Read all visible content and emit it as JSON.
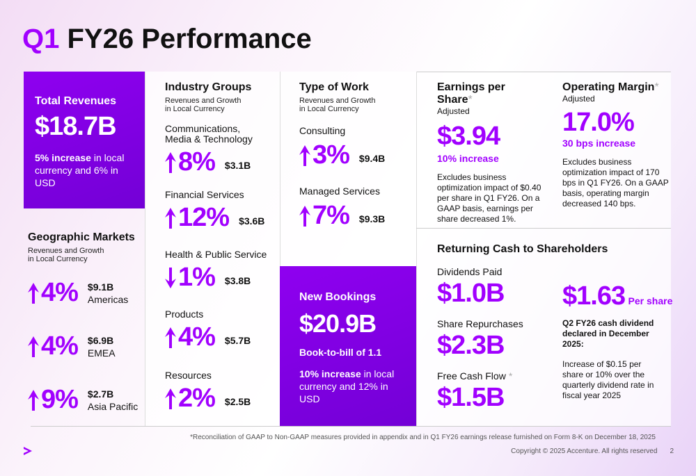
{
  "header": {
    "title_prefix": "Q1",
    "title": "FY26 Performance"
  },
  "total_revenues": {
    "title": "Total Revenues",
    "value": "$18.7B",
    "highlight": "5% increase",
    "text": "in local currency and 6% in USD"
  },
  "geographic_markets": {
    "title": "Geographic Markets",
    "subtitle": "Revenues and Growth in Local Currency",
    "items": [
      {
        "direction": "up",
        "growth": "4%",
        "amount": "$9.1B",
        "name": "Americas"
      },
      {
        "direction": "up",
        "growth": "4%",
        "amount": "$6.9B",
        "name": "EMEA"
      },
      {
        "direction": "up",
        "growth": "9%",
        "amount": "$2.7B",
        "name": "Asia Pacific"
      }
    ]
  },
  "industry_groups": {
    "title": "Industry Groups",
    "subtitle": "Revenues and Growth in Local Currency",
    "items": [
      {
        "name": "Communications, Media & Technology",
        "direction": "up",
        "growth": "8%",
        "amount": "$3.1B"
      },
      {
        "name": "Financial Services",
        "direction": "up",
        "growth": "12%",
        "amount": "$3.6B"
      },
      {
        "name": "Health & Public Service",
        "direction": "down",
        "growth": "1%",
        "amount": "$3.8B"
      },
      {
        "name": "Products",
        "direction": "up",
        "growth": "4%",
        "amount": "$5.7B"
      },
      {
        "name": "Resources",
        "direction": "up",
        "growth": "2%",
        "amount": "$2.5B"
      }
    ]
  },
  "type_of_work": {
    "title": "Type of Work",
    "subtitle": "Revenues and Growth in Local Currency",
    "items": [
      {
        "name": "Consulting",
        "direction": "up",
        "growth": "3%",
        "amount": "$9.4B"
      },
      {
        "name": "Managed Services",
        "direction": "up",
        "growth": "7%",
        "amount": "$9.3B"
      }
    ]
  },
  "new_bookings": {
    "title": "New Bookings",
    "value": "$20.9B",
    "ratio": "Book-to-bill of 1.1",
    "highlight": "10% increase",
    "text": "in local currency and 12% in USD"
  },
  "eps": {
    "title": "Earnings per Share",
    "mark": "*",
    "subtitle": "Adjusted",
    "value": "$3.94",
    "change": "10% increase",
    "note": "Excludes business optimization impact of $0.40 per share in Q1 FY26. On a GAAP basis, earnings per share decreased 1%."
  },
  "operating_margin": {
    "title": "Operating Margin",
    "mark": "*",
    "subtitle": "Adjusted",
    "value": "17.0%",
    "change": "30 bps increase",
    "note": "Excludes business optimization impact of 170 bps in Q1 FY26. On a GAAP basis, operating margin decreased 140 bps."
  },
  "returning_cash": {
    "title": "Returning Cash to Shareholders",
    "items": [
      {
        "label": "Dividends Paid",
        "value": "$1.0B"
      },
      {
        "label": "Share Repurchases",
        "value": "$2.3B"
      },
      {
        "label": "Free Cash Flow",
        "mark": "*",
        "value": "$1.5B"
      }
    ],
    "dividend": {
      "value": "$1.63",
      "unit": "Per share",
      "heading": "Q2 FY26 cash dividend declared in December 2025:",
      "text": "Increase of $0.15 per share or 10% over the quarterly dividend rate in fiscal year 2025"
    }
  },
  "footer": {
    "footnote": "*Reconciliation of GAAP to Non-GAAP measures provided in appendix and in Q1 FY26 earnings release furnished on Form 8-K on December 18, 2025",
    "copyright": "Copyright © 2025 Accenture. All rights reserved",
    "page": "2"
  }
}
